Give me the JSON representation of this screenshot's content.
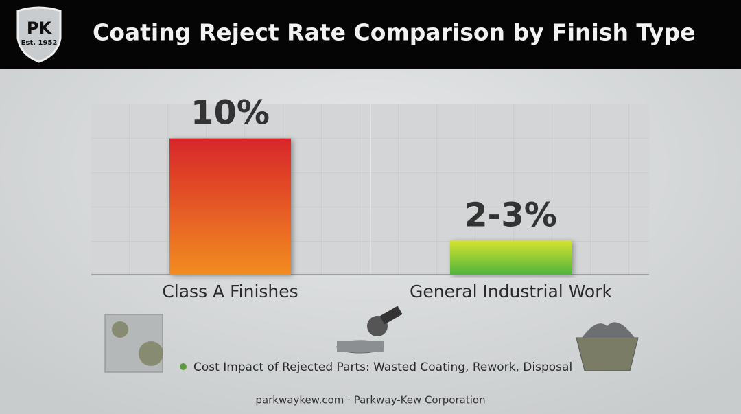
{
  "logo": {
    "initials": "PK",
    "established": "Est. 1952"
  },
  "chart_data": {
    "type": "bar",
    "title": "Coating Reject Rate Comparison by Finish Type",
    "categories": [
      "Class A Finishes",
      "General Industrial Work"
    ],
    "values": [
      10,
      2.5
    ],
    "value_labels": [
      "10%",
      "2-3%"
    ],
    "colors": [
      [
        "#d8262a",
        "#f28c22"
      ],
      [
        "#d6e22e",
        "#4fb43e"
      ]
    ],
    "ylim": [
      0,
      12.5
    ]
  },
  "note": "Cost Impact of Rejected Parts: Wasted Coating, Rework, Disposal",
  "footer": "parkwaykew.com · Parkway-Kew Corporation"
}
